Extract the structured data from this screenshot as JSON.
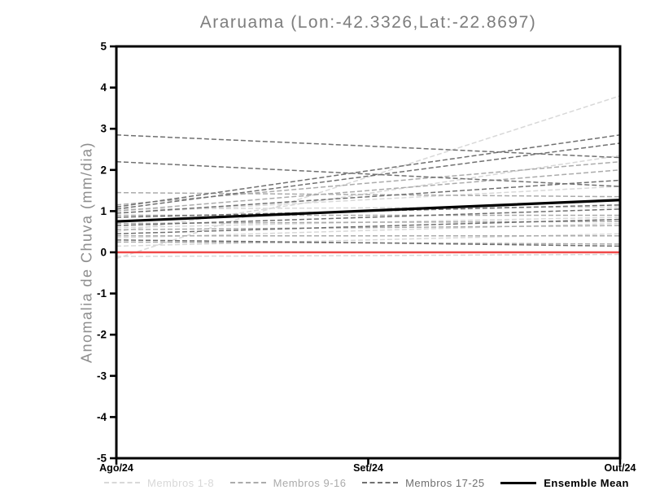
{
  "chart_data": {
    "type": "line",
    "title": "Araruama (Lon:-42.3326,Lat:-22.8697)",
    "ylabel": "Anomalia de Chuva (mm/dia)",
    "xlabel": "",
    "x_categories": [
      "Ago/24",
      "Set/24",
      "Out/24"
    ],
    "ylim": [
      -5,
      5
    ],
    "y_ticks": [
      5,
      4,
      3,
      2,
      1,
      0,
      -1,
      -2,
      -3,
      -4,
      -5
    ],
    "grid": false,
    "legend_position": "bottom",
    "axis_color": "#000000",
    "zero_line": {
      "value": 0,
      "color": "#f04848"
    },
    "groups": [
      {
        "name": "Membros 1-8",
        "color": "#d8d8d8",
        "dashed": true,
        "width": 1.5
      },
      {
        "name": "Membros 9-16",
        "color": "#ababab",
        "dashed": true,
        "width": 1.5
      },
      {
        "name": "Membros 17-25",
        "color": "#707070",
        "dashed": true,
        "width": 1.5
      },
      {
        "name": "Ensemble Mean",
        "color": "#000000",
        "dashed": false,
        "width": 3.2
      }
    ],
    "series": [
      {
        "name": "Membro 1",
        "group": 0,
        "values": [
          -0.1,
          -0.08,
          -0.05
        ]
      },
      {
        "name": "Membro 2",
        "group": 0,
        "values": [
          0.5,
          1.43,
          2.35
        ]
      },
      {
        "name": "Membro 3",
        "group": 0,
        "values": [
          1.05,
          1.08,
          1.1
        ]
      },
      {
        "name": "Membro 4",
        "group": 0,
        "values": [
          0.6,
          0.73,
          0.85
        ]
      },
      {
        "name": "Membro 5",
        "group": 0,
        "values": [
          0.35,
          0.53,
          0.7
        ]
      },
      {
        "name": "Membro 6",
        "group": 0,
        "values": [
          0.15,
          0.3,
          0.45
        ]
      },
      {
        "name": "Membro 7",
        "group": 0,
        "values": [
          -0.15,
          1.83,
          3.8
        ]
      },
      {
        "name": "Membro 8",
        "group": 0,
        "values": [
          0.95,
          1.28,
          1.6
        ]
      },
      {
        "name": "Membro 9",
        "group": 1,
        "values": [
          1.45,
          1.4,
          1.35
        ]
      },
      {
        "name": "Membro 10",
        "group": 1,
        "values": [
          1.15,
          1.68,
          2.2
        ]
      },
      {
        "name": "Membro 11",
        "group": 1,
        "values": [
          1.0,
          1.5,
          2.0
        ]
      },
      {
        "name": "Membro 12",
        "group": 1,
        "values": [
          0.9,
          0.9,
          0.9
        ]
      },
      {
        "name": "Membro 13",
        "group": 1,
        "values": [
          0.7,
          0.73,
          0.75
        ]
      },
      {
        "name": "Membro 14",
        "group": 1,
        "values": [
          0.55,
          0.6,
          0.65
        ]
      },
      {
        "name": "Membro 15",
        "group": 1,
        "values": [
          0.4,
          0.4,
          0.4
        ]
      },
      {
        "name": "Membro 16",
        "group": 1,
        "values": [
          0.25,
          0.23,
          0.2
        ]
      },
      {
        "name": "Membro 17",
        "group": 2,
        "values": [
          2.85,
          2.58,
          2.3
        ]
      },
      {
        "name": "Membro 18",
        "group": 2,
        "values": [
          2.2,
          1.9,
          1.6
        ]
      },
      {
        "name": "Membro 19",
        "group": 2,
        "values": [
          1.1,
          1.98,
          2.85
        ]
      },
      {
        "name": "Membro 20",
        "group": 2,
        "values": [
          1.05,
          1.85,
          2.65
        ]
      },
      {
        "name": "Membro 21",
        "group": 2,
        "values": [
          0.95,
          1.35,
          1.75
        ]
      },
      {
        "name": "Membro 22",
        "group": 2,
        "values": [
          0.85,
          1.0,
          1.15
        ]
      },
      {
        "name": "Membro 23",
        "group": 2,
        "values": [
          0.65,
          0.85,
          1.05
        ]
      },
      {
        "name": "Membro 24",
        "group": 2,
        "values": [
          0.45,
          0.63,
          0.8
        ]
      },
      {
        "name": "Membro 25",
        "group": 2,
        "values": [
          0.3,
          0.23,
          0.15
        ]
      },
      {
        "name": "Ensemble Mean",
        "group": 3,
        "values": [
          0.75,
          1.01,
          1.27
        ]
      }
    ]
  }
}
